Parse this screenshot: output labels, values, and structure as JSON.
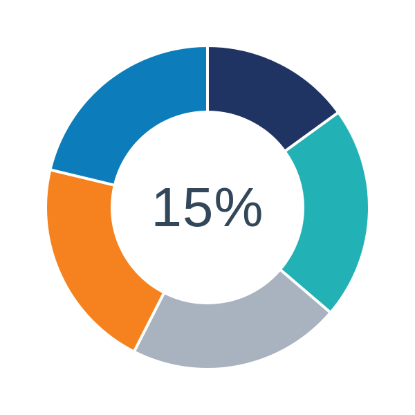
{
  "page": {
    "background": "#FFFFFF"
  },
  "chart_data": {
    "type": "pie",
    "variant": "donut",
    "title": "",
    "center_label": "15%",
    "center_label_color": "#33475B",
    "segment_names": [
      "navy",
      "teal",
      "gray",
      "orange",
      "blue"
    ],
    "values": [
      15,
      21.25,
      21.25,
      21.25,
      21.25
    ],
    "unit": "percent",
    "colors": [
      "#1F3462",
      "#22B1B5",
      "#A9B3BF",
      "#F5821F",
      "#0D7CBA"
    ],
    "start_angle_deg": 0,
    "direction": "clockwise",
    "center": [
      300,
      300
    ],
    "outer_radius": 234,
    "inner_radius": 138,
    "separator_color": "#FFFFFF",
    "separator_width": 4,
    "legend": "none",
    "grid": false
  }
}
